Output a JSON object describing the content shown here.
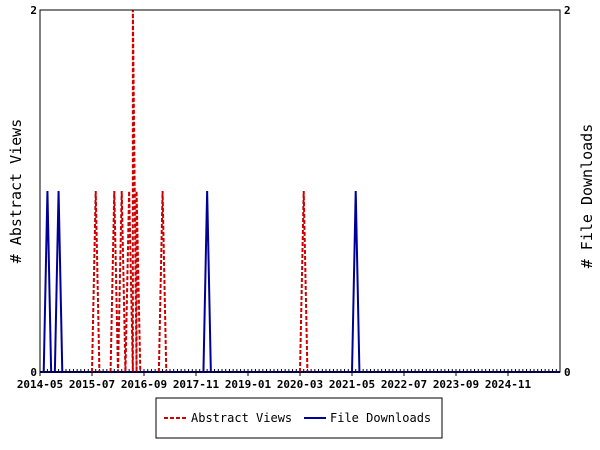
{
  "chart_data": {
    "type": "line",
    "x_tick_labels": [
      "2014-05",
      "2015-07",
      "2016-09",
      "2017-11",
      "2019-01",
      "2020-03",
      "2021-05",
      "2022-07",
      "2023-09",
      "2024-11"
    ],
    "x_range": [
      "2014-05",
      "2026-01"
    ],
    "ylabel_left": "# Abstract Views",
    "ylabel_right": "# File Downloads",
    "ylim_left": [
      0,
      2
    ],
    "ylim_right": [
      0,
      2
    ],
    "y_ticks_left": [
      "0",
      "2"
    ],
    "y_ticks_right": [
      "0",
      "2"
    ],
    "grid": false,
    "legend_position": "bottom-center",
    "series": [
      {
        "name": "Abstract Views",
        "color": "#cc0000",
        "dash": "dashed",
        "axis": "left",
        "points": [
          {
            "x": "2015-08",
            "y": 1
          },
          {
            "x": "2016-01",
            "y": 1
          },
          {
            "x": "2016-03",
            "y": 1
          },
          {
            "x": "2016-05",
            "y": 1
          },
          {
            "x": "2016-06",
            "y": 2
          },
          {
            "x": "2016-07",
            "y": 1
          },
          {
            "x": "2017-02",
            "y": 1
          },
          {
            "x": "2020-04",
            "y": 1
          }
        ]
      },
      {
        "name": "File Downloads",
        "color": "#000099",
        "dash": "solid",
        "axis": "right",
        "points": [
          {
            "x": "2014-07",
            "y": 1
          },
          {
            "x": "2014-10",
            "y": 1
          },
          {
            "x": "2018-02",
            "y": 1
          },
          {
            "x": "2021-06",
            "y": 1
          }
        ]
      }
    ]
  }
}
